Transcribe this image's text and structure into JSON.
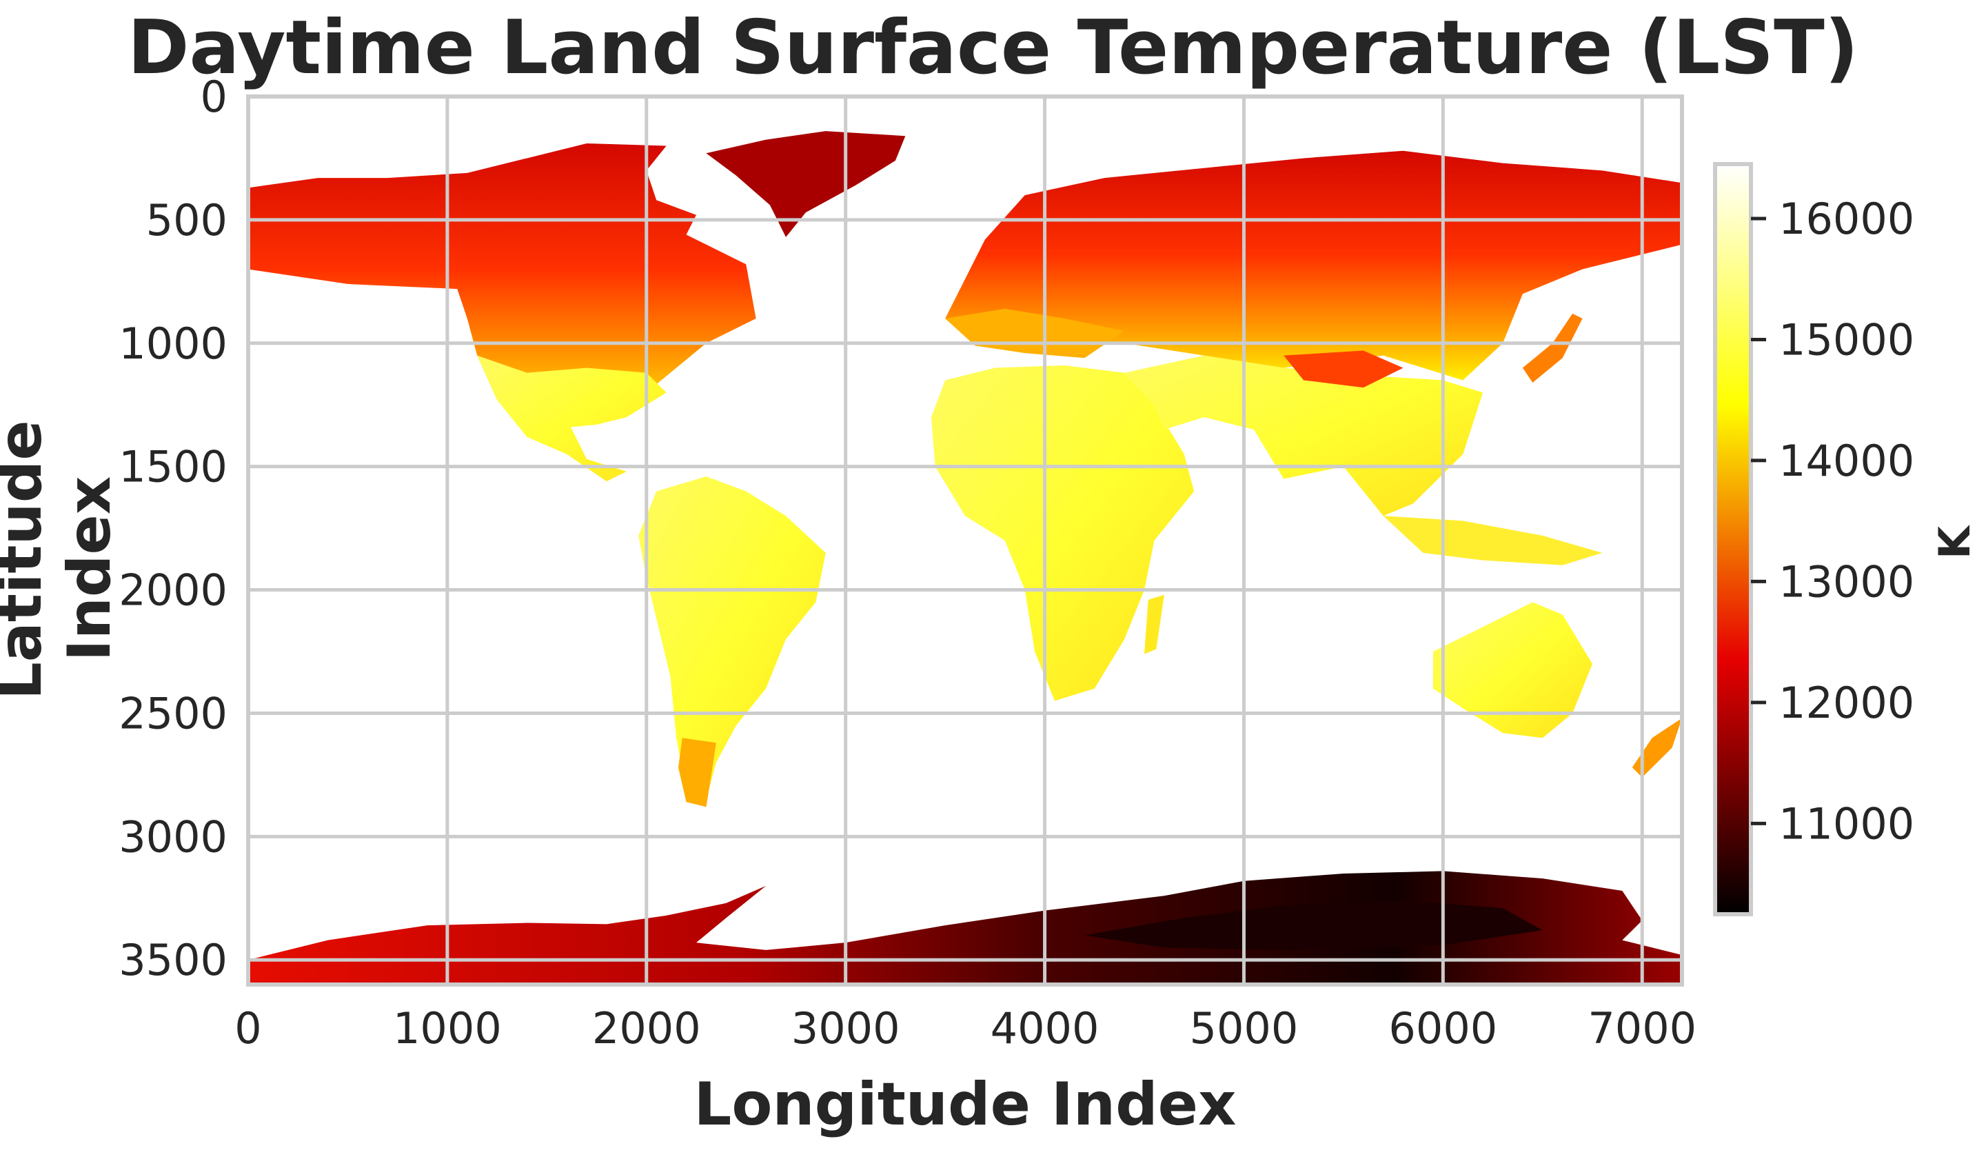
{
  "chart_data": {
    "type": "heatmap",
    "title": "Daytime Land Surface Temperature (LST)",
    "xlabel": "Longitude Index",
    "ylabel": "Latitude Index",
    "xlim": [
      0,
      7200
    ],
    "ylim": [
      3600,
      0
    ],
    "x_ticks": [
      0,
      1000,
      2000,
      3000,
      4000,
      5000,
      6000,
      7000
    ],
    "y_ticks": [
      0,
      500,
      1000,
      1500,
      2000,
      2500,
      3000,
      3500
    ],
    "grid": true,
    "colormap": "hot",
    "colorbar": {
      "label": "K",
      "range": [
        10250,
        16450
      ],
      "ticks": [
        11000,
        12000,
        13000,
        14000,
        15000,
        16000
      ],
      "colors": [
        "#000000",
        "#ff0000",
        "#ffff00",
        "#ffffff"
      ]
    },
    "region_values_K": {
      "greenland": 11900,
      "canada_north": 12600,
      "north_america_south": 15000,
      "south_america": 15300,
      "patagonia": 13800,
      "africa": 15500,
      "europe": 13600,
      "siberia": 12600,
      "asia_south": 15100,
      "australia": 15500,
      "antarctica_west": 12300,
      "antarctica_east": 10700
    }
  }
}
